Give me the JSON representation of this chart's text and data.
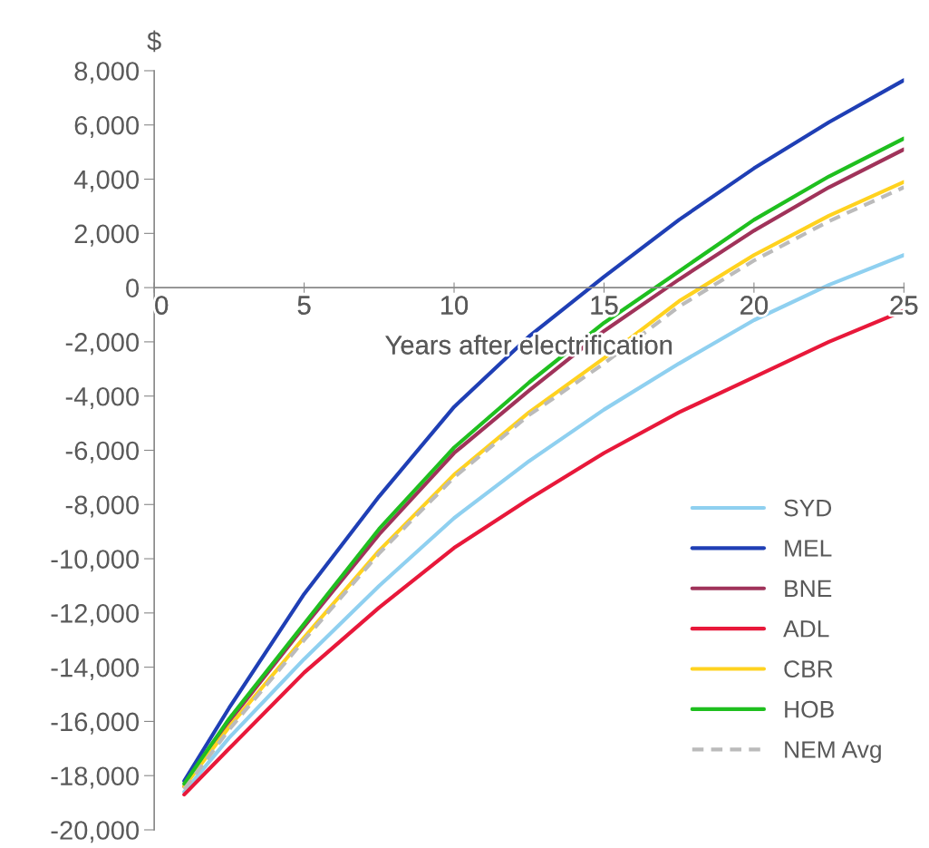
{
  "chart_data": {
    "type": "line",
    "xlabel": "Years after electrification",
    "ylabel": "$",
    "xlim": [
      0,
      25
    ],
    "xticks": [
      0,
      5,
      10,
      15,
      20,
      25
    ],
    "ylim": [
      -20000,
      8000
    ],
    "yticks": [
      {
        "value": -20000,
        "label": "-20,000"
      },
      {
        "value": -18000,
        "label": "-18,000"
      },
      {
        "value": -16000,
        "label": "-16,000"
      },
      {
        "value": -14000,
        "label": "-14,000"
      },
      {
        "value": -12000,
        "label": "-12,000"
      },
      {
        "value": -10000,
        "label": "-10,000"
      },
      {
        "value": -8000,
        "label": "-8,000"
      },
      {
        "value": -6000,
        "label": "-6,000"
      },
      {
        "value": -4000,
        "label": "-4,000"
      },
      {
        "value": -2000,
        "label": "-2,000"
      },
      0,
      {
        "value": 2000,
        "label": "2,000"
      },
      {
        "value": 4000,
        "label": "4,000"
      },
      {
        "value": 6000,
        "label": "6,000"
      },
      {
        "value": 8000,
        "label": "8,000"
      }
    ],
    "x": [
      1,
      2.5,
      5,
      7.5,
      10,
      12.5,
      15,
      17.5,
      20,
      22.5,
      25
    ],
    "grid": false,
    "legend": "bottom right",
    "marker": "none",
    "series": [
      {
        "name": "SYD",
        "color": "#8fd0f0",
        "values": [
          -18600,
          -16600,
          -13700,
          -11000,
          -8500,
          -6400,
          -4500,
          -2800,
          -1200,
          100,
          1200
        ]
      },
      {
        "name": "MEL",
        "color": "#1f3fb5",
        "values": [
          -18200,
          -15500,
          -11300,
          -7700,
          -4400,
          -1800,
          400,
          2500,
          4400,
          6100,
          7650
        ]
      },
      {
        "name": "BNE",
        "color": "#a0335a",
        "values": [
          -18400,
          -16000,
          -12500,
          -9100,
          -6100,
          -3800,
          -1600,
          300,
          2100,
          3700,
          5100
        ]
      },
      {
        "name": "ADL",
        "color": "#e8183a",
        "values": [
          -18700,
          -17000,
          -14200,
          -11800,
          -9600,
          -7800,
          -6100,
          -4600,
          -3300,
          -2000,
          -850
        ]
      },
      {
        "name": "CBR",
        "color": "#ffd21f",
        "values": [
          -18400,
          -16200,
          -12900,
          -9700,
          -6900,
          -4600,
          -2600,
          -500,
          1200,
          2650,
          3900
        ]
      },
      {
        "name": "HOB",
        "color": "#1fbf1f",
        "values": [
          -18300,
          -15900,
          -12400,
          -8900,
          -5900,
          -3500,
          -1300,
          600,
          2500,
          4100,
          5500
        ]
      },
      {
        "name": "NEM Avg",
        "color": "#bbbbbb",
        "line_style": "dashed",
        "values": [
          -18500,
          -16300,
          -13000,
          -9800,
          -7000,
          -4700,
          -2800,
          -700,
          1000,
          2450,
          3700
        ]
      }
    ]
  }
}
